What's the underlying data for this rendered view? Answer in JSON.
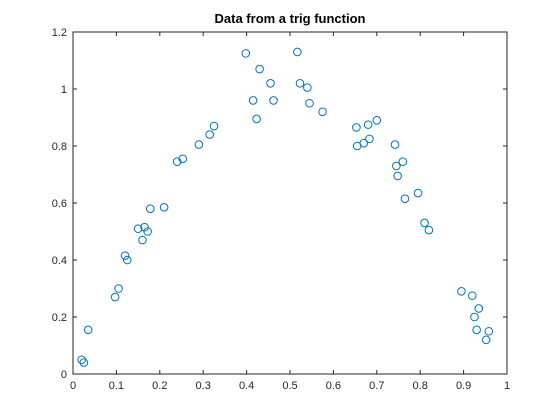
{
  "chart_data": {
    "type": "scatter",
    "title": "Data from a trig function",
    "xlabel": "",
    "ylabel": "",
    "xlim": [
      0,
      1
    ],
    "ylim": [
      0,
      1.2
    ],
    "xticks": [
      0,
      0.1,
      0.2,
      0.3,
      0.4,
      0.5,
      0.6,
      0.7,
      0.8,
      0.9,
      1
    ],
    "xtick_labels": [
      "0",
      "0.1",
      "0.2",
      "0.3",
      "0.4",
      "0.5",
      "0.6",
      "0.7",
      "0.8",
      "0.9",
      "1"
    ],
    "yticks": [
      0,
      0.2,
      0.4,
      0.6,
      0.8,
      1,
      1.2
    ],
    "ytick_labels": [
      "0",
      "0.2",
      "0.4",
      "0.6",
      "0.8",
      "1",
      "1.2"
    ],
    "grid": false,
    "box": true,
    "marker": "circle",
    "series": [
      {
        "color": "#0072BD",
        "x": [
          0.02,
          0.025,
          0.035,
          0.097,
          0.105,
          0.12,
          0.125,
          0.15,
          0.16,
          0.165,
          0.172,
          0.178,
          0.21,
          0.24,
          0.253,
          0.29,
          0.315,
          0.325,
          0.398,
          0.415,
          0.423,
          0.43,
          0.455,
          0.462,
          0.517,
          0.523,
          0.54,
          0.545,
          0.575,
          0.653,
          0.655,
          0.67,
          0.68,
          0.683,
          0.7,
          0.742,
          0.745,
          0.748,
          0.76,
          0.765,
          0.795,
          0.81,
          0.82,
          0.895,
          0.92,
          0.925,
          0.93,
          0.935,
          0.952,
          0.958
        ],
        "y": [
          0.05,
          0.04,
          0.155,
          0.27,
          0.3,
          0.415,
          0.4,
          0.51,
          0.47,
          0.515,
          0.5,
          0.58,
          0.585,
          0.745,
          0.755,
          0.805,
          0.84,
          0.87,
          1.125,
          0.96,
          0.895,
          1.07,
          1.02,
          0.96,
          1.13,
          1.02,
          1.005,
          0.95,
          0.92,
          0.865,
          0.8,
          0.81,
          0.875,
          0.825,
          0.89,
          0.805,
          0.73,
          0.695,
          0.745,
          0.615,
          0.635,
          0.53,
          0.505,
          0.29,
          0.275,
          0.2,
          0.155,
          0.23,
          0.12,
          0.15
        ]
      }
    ]
  }
}
